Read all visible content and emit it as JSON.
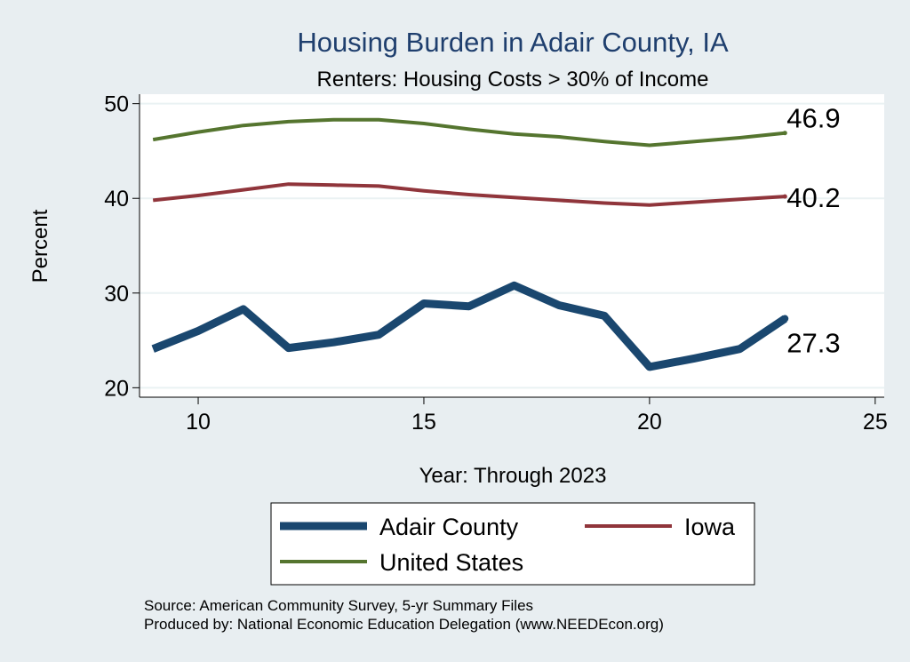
{
  "chart_data": {
    "type": "line",
    "title": "Housing Burden in Adair County, IA",
    "subtitle": "Renters: Housing Costs > 30% of Income",
    "xlabel": "Year: Through 2023",
    "ylabel": "Percent",
    "xlim": [
      8.7,
      25.2
    ],
    "ylim": [
      19,
      51
    ],
    "xticks": [
      10,
      15,
      20,
      25
    ],
    "yticks": [
      20,
      30,
      40,
      50
    ],
    "x": [
      9,
      10,
      11,
      12,
      13,
      14,
      15,
      16,
      17,
      18,
      19,
      20,
      21,
      22,
      23
    ],
    "series": [
      {
        "name": "Adair County",
        "color": "#1a476f",
        "values": [
          24.1,
          26.0,
          28.3,
          24.2,
          24.8,
          25.6,
          28.9,
          28.6,
          30.8,
          28.7,
          27.6,
          22.2,
          23.1,
          24.1,
          27.3
        ],
        "end_label": "27.3"
      },
      {
        "name": "Iowa",
        "color": "#90353b",
        "values": [
          39.8,
          40.3,
          40.9,
          41.5,
          41.4,
          41.3,
          40.8,
          40.4,
          40.1,
          39.8,
          39.5,
          39.3,
          39.6,
          39.9,
          40.2
        ],
        "end_label": "40.2"
      },
      {
        "name": "United States",
        "color": "#55752f",
        "values": [
          46.2,
          47.0,
          47.7,
          48.1,
          48.3,
          48.3,
          47.9,
          47.3,
          46.8,
          46.5,
          46.0,
          45.6,
          46.0,
          46.4,
          46.9
        ],
        "end_label": "46.9"
      }
    ],
    "legend": {
      "position": "bottom",
      "entries": [
        "Adair County",
        "Iowa",
        "United States"
      ]
    },
    "notes": [
      "Source: American Community Survey, 5-yr Summary Files",
      "Produced by: National Economic Education Delegation (www.NEEDEcon.org)"
    ],
    "grid": true
  }
}
